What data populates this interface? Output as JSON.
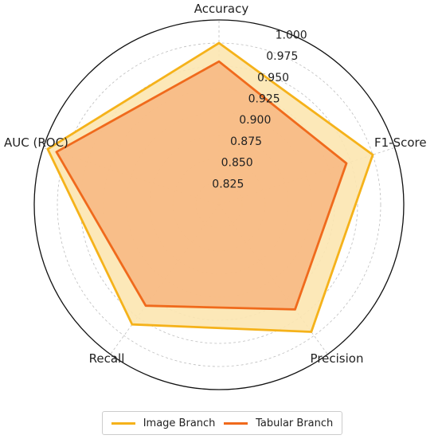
{
  "chart_data": {
    "type": "radar",
    "axes": [
      "Accuracy",
      "F1-Score",
      "Precision",
      "Recall",
      "AUC (ROC)"
    ],
    "radial_ticks": [
      "0.825",
      "0.850",
      "0.875",
      "0.900",
      "0.925",
      "0.950",
      "0.975",
      "1.000"
    ],
    "rlim": [
      0.8,
      1.0
    ],
    "grid": true,
    "legend_position": "bottom",
    "series": [
      {
        "name": "Image Branch",
        "color": "#f5b21a",
        "fill": "#fce5b0",
        "values": [
          0.975,
          0.975,
          0.97,
          0.96,
          0.995
        ]
      },
      {
        "name": "Tabular Branch",
        "color": "#f06a1c",
        "fill": "#f7b07a",
        "values": [
          0.955,
          0.945,
          0.94,
          0.935,
          0.985
        ]
      }
    ]
  }
}
